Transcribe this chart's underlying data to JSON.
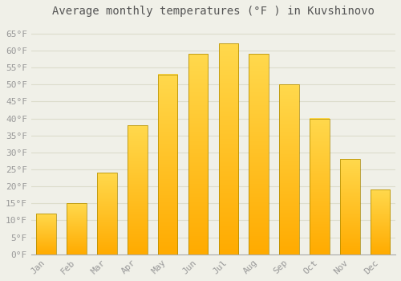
{
  "months": [
    "Jan",
    "Feb",
    "Mar",
    "Apr",
    "May",
    "Jun",
    "Jul",
    "Aug",
    "Sep",
    "Oct",
    "Nov",
    "Dec"
  ],
  "values": [
    12,
    15,
    24,
    38,
    53,
    59,
    62,
    59,
    50,
    40,
    28,
    19
  ],
  "bar_color_main": "#FFBB00",
  "bar_color_light": "#FFD050",
  "bar_edge_color": "#AA8800",
  "background_color": "#F0F0E8",
  "grid_color": "#DDDDCC",
  "title": "Average monthly temperatures (°F ) in Kuvshinovo",
  "title_fontsize": 10,
  "tick_fontsize": 8,
  "ylim": [
    0,
    68
  ],
  "yticks": [
    0,
    5,
    10,
    15,
    20,
    25,
    30,
    35,
    40,
    45,
    50,
    55,
    60,
    65
  ]
}
